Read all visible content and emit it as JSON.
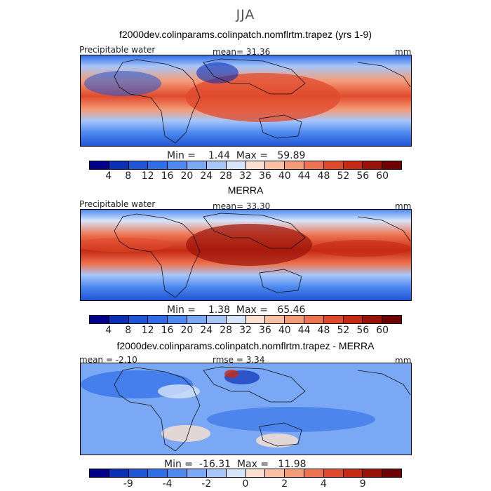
{
  "figure": {
    "season": "JJA"
  },
  "panels": [
    {
      "title": "f2000dev.colinparams.colinpatch.nomflrtm.trapez (yrs 1-9)",
      "left_label": "Precipitable water",
      "center_label": "mean=   31.36",
      "units": "mm",
      "minmax": "Min =    1.44  Max =   59.89",
      "colorbar": {
        "colors": [
          "#00008b",
          "#0b2fb4",
          "#1f55d6",
          "#2f6ee8",
          "#4f8af0",
          "#7aa8f4",
          "#a8c6f8",
          "#d7e5fb",
          "#fde1d0",
          "#f9c0a3",
          "#f49c78",
          "#ee7350",
          "#e04a2c",
          "#c52a14",
          "#9b120a",
          "#6e0000"
        ],
        "labels": [
          "4",
          "8",
          "12",
          "16",
          "20",
          "24",
          "28",
          "32",
          "36",
          "40",
          "44",
          "48",
          "52",
          "56",
          "60"
        ]
      }
    },
    {
      "title": "MERRA",
      "left_label": "Precipitable water",
      "center_label": "mean=   33.30",
      "units": "mm",
      "minmax": "Min =    1.38  Max =   65.46",
      "colorbar": {
        "colors": [
          "#00008b",
          "#0b2fb4",
          "#1f55d6",
          "#2f6ee8",
          "#4f8af0",
          "#7aa8f4",
          "#a8c6f8",
          "#d7e5fb",
          "#fde1d0",
          "#f9c0a3",
          "#f49c78",
          "#ee7350",
          "#e04a2c",
          "#c52a14",
          "#9b120a",
          "#6e0000"
        ],
        "labels": [
          "4",
          "8",
          "12",
          "16",
          "20",
          "24",
          "28",
          "32",
          "36",
          "40",
          "44",
          "48",
          "52",
          "56",
          "60"
        ]
      }
    },
    {
      "title": "f2000dev.colinparams.colinpatch.nomflrtm.trapez - MERRA",
      "left_label": "mean =   -2.10",
      "center_label": "rmse =    3.34",
      "units": "mm",
      "minmax": "Min =  -16.31  Max =   11.98",
      "colorbar": {
        "colors": [
          "#00008b",
          "#0b2fb4",
          "#1f55d6",
          "#2f6ee8",
          "#4f8af0",
          "#7aa8f4",
          "#a8c6f8",
          "#d7e5fb",
          "#fde1d0",
          "#f9c0a3",
          "#f49c78",
          "#ee7350",
          "#e04a2c",
          "#c52a14",
          "#9b120a",
          "#6e0000"
        ],
        "labels": [
          "-9",
          "-4",
          "-2",
          "0",
          "2",
          "4",
          "9"
        ]
      }
    }
  ]
}
